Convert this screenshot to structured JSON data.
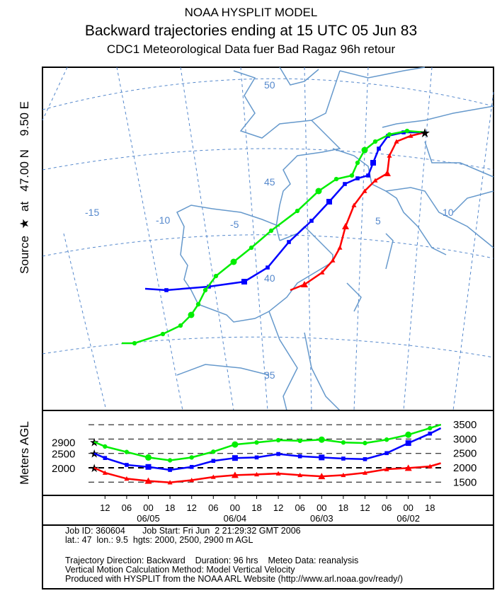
{
  "title": {
    "line1": "NOAA HYSPLIT MODEL",
    "line2": "Backward trajectories ending at 15 UTC 05 Jun 83",
    "line3": "CDC1 Meteorological Data fuer Bad Ragaz 96h retour"
  },
  "side_label": "Source  ★  at   47.00 N    9.50 E",
  "height_axis_label": "Meters AGL",
  "map": {
    "lat_labels": [
      "50",
      "45",
      "40",
      "35"
    ],
    "lon_labels": [
      "-15",
      "-10",
      "-5",
      "5",
      "10"
    ]
  },
  "colors": {
    "low": "#ff0000",
    "mid": "#0000ff",
    "high": "#00ee00",
    "grid": "#5588cc",
    "coast": "#6699cc"
  },
  "chart_data": {
    "type": "line",
    "ylabel": "Meters AGL",
    "ylim": [
      1500,
      3500
    ],
    "right_ticks": [
      "3500",
      "3000",
      "2500",
      "2000",
      "1500"
    ],
    "start_labels": [
      "2900",
      "2500",
      "2000"
    ],
    "x_tick_labels": [
      "12",
      "06",
      "00",
      "18",
      "12",
      "06",
      "00",
      "18",
      "12",
      "06",
      "00",
      "18",
      "12",
      "06",
      "00",
      "18"
    ],
    "date_labels": [
      "06/05",
      "06/04",
      "06/03",
      "06/02"
    ],
    "hours_back": [
      0,
      3,
      9,
      15,
      21,
      27,
      33,
      39,
      45,
      51,
      57,
      63,
      69,
      75,
      81,
      87,
      93,
      96
    ],
    "series": [
      {
        "name": "2000 m",
        "color": "#ff0000",
        "marker": "triangle",
        "values": [
          2000,
          1825,
          1620,
          1540,
          1490,
          1570,
          1680,
          1745,
          1770,
          1800,
          1745,
          1700,
          1745,
          1825,
          1950,
          1990,
          2050,
          2160
        ]
      },
      {
        "name": "2500 m",
        "color": "#0000ff",
        "marker": "square",
        "values": [
          2500,
          2340,
          2100,
          2030,
          1925,
          2030,
          2240,
          2340,
          2360,
          2480,
          2400,
          2360,
          2320,
          2300,
          2510,
          2860,
          3190,
          3380
        ]
      },
      {
        "name": "2900 m",
        "color": "#00ee00",
        "marker": "circle",
        "values": [
          2900,
          2740,
          2550,
          2360,
          2260,
          2360,
          2560,
          2810,
          2880,
          2960,
          2940,
          2980,
          2880,
          2860,
          2980,
          3150,
          3380,
          3500
        ]
      }
    ]
  },
  "info": {
    "line1": "Job ID: 360604       Job Start: Fri Jun  2 21:29:32 GMT 2006",
    "line2": "lat.: 47  lon.: 9.5  hgts: 2000, 2500, 2900 m AGL",
    "line3": "Trajectory Direction: Backward    Duration: 96 hrs    Meteo Data: reanalysis",
    "line4": "Vertical Motion Calculation Method: Model Vertical Velocity",
    "line5": "Produced with HYSPLIT from the NOAA ARL Website (http://www.arl.noaa.gov/ready/)"
  }
}
